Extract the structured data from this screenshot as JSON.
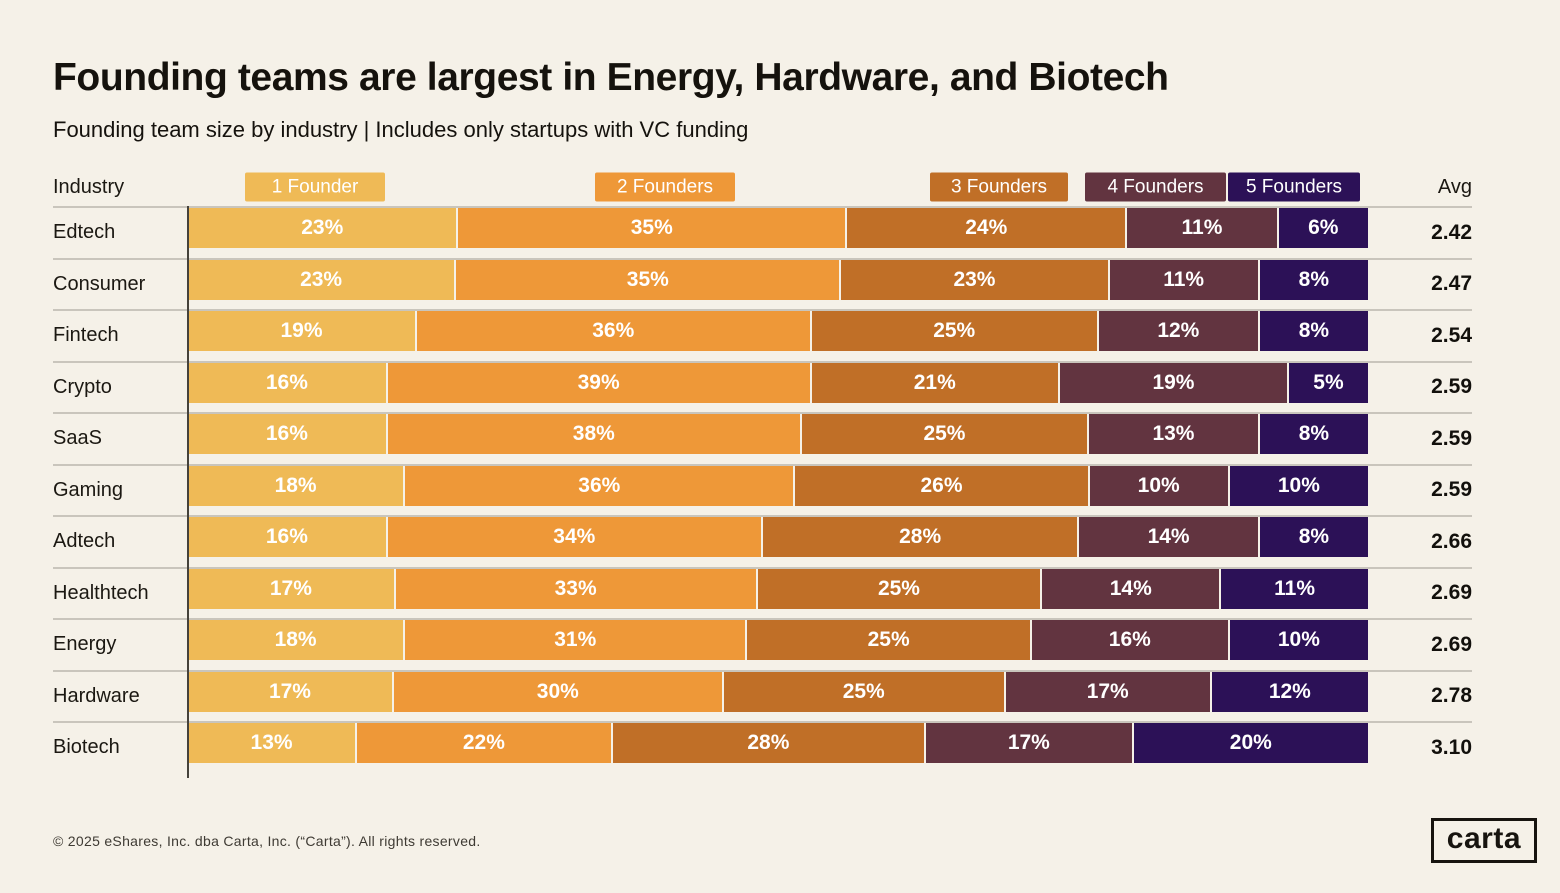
{
  "title": "Founding teams are largest in Energy, Hardware, and Biotech",
  "subtitle": "Founding team size by industry | Includes only startups with VC funding",
  "colors": {
    "background": "#F5F1E8",
    "separator_line": "#C9C5BC",
    "axis_line": "#45423B",
    "founder_1": "#EFBA56",
    "founder_2": "#EE9838",
    "founder_3": "#C06F27",
    "founder_4": "#623440",
    "founder_5": "#2C1157"
  },
  "table_headers": {
    "industry": "Industry",
    "avg": "Avg"
  },
  "legend": [
    {
      "label": "1 Founder",
      "color": "#EFBA56"
    },
    {
      "label": "2 Founders",
      "color": "#EE9838"
    },
    {
      "label": "3 Founders",
      "color": "#C06F27"
    },
    {
      "label": "4 Founders",
      "color": "#623440"
    },
    {
      "label": "5 Founders",
      "color": "#2C1157"
    }
  ],
  "chart_data": {
    "type": "bar",
    "stacked": true,
    "orientation": "horizontal",
    "unit": "%",
    "title": "Founding teams are largest in Energy, Hardware, and Biotech",
    "subtitle": "Founding team size by industry | Includes only startups with VC funding",
    "series_labels": [
      "1 Founder",
      "2 Founders",
      "3 Founders",
      "4 Founders",
      "5 Founders"
    ],
    "series_colors": [
      "#EFBA56",
      "#EE9838",
      "#C06F27",
      "#623440",
      "#2C1157"
    ],
    "legend_position": "top",
    "xlim": [
      0,
      100
    ],
    "rows": [
      {
        "industry": "Edtech",
        "values": [
          23,
          35,
          24,
          11,
          6
        ],
        "avg": "2.42"
      },
      {
        "industry": "Consumer",
        "values": [
          23,
          35,
          23,
          11,
          8
        ],
        "avg": "2.47"
      },
      {
        "industry": "Fintech",
        "values": [
          19,
          36,
          25,
          12,
          8
        ],
        "avg": "2.54"
      },
      {
        "industry": "Crypto",
        "values": [
          16,
          39,
          21,
          19,
          5
        ],
        "avg": "2.59"
      },
      {
        "industry": "SaaS",
        "values": [
          16,
          38,
          25,
          13,
          8
        ],
        "avg": "2.59"
      },
      {
        "industry": "Gaming",
        "values": [
          18,
          36,
          26,
          10,
          10
        ],
        "avg": "2.59"
      },
      {
        "industry": "Adtech",
        "values": [
          16,
          34,
          28,
          14,
          8
        ],
        "avg": "2.66"
      },
      {
        "industry": "Healthtech",
        "values": [
          17,
          33,
          25,
          14,
          11
        ],
        "avg": "2.69"
      },
      {
        "industry": "Energy",
        "values": [
          18,
          31,
          25,
          16,
          10
        ],
        "avg": "2.69"
      },
      {
        "industry": "Hardware",
        "values": [
          17,
          30,
          25,
          17,
          12
        ],
        "avg": "2.78"
      },
      {
        "industry": "Biotech",
        "values": [
          13,
          22,
          28,
          17,
          20
        ],
        "avg": "3.10"
      }
    ]
  },
  "footer": {
    "copyright": "© 2025 eShares, Inc. dba Carta, Inc. (“Carta”). All rights reserved.",
    "logo_text": "carta"
  }
}
